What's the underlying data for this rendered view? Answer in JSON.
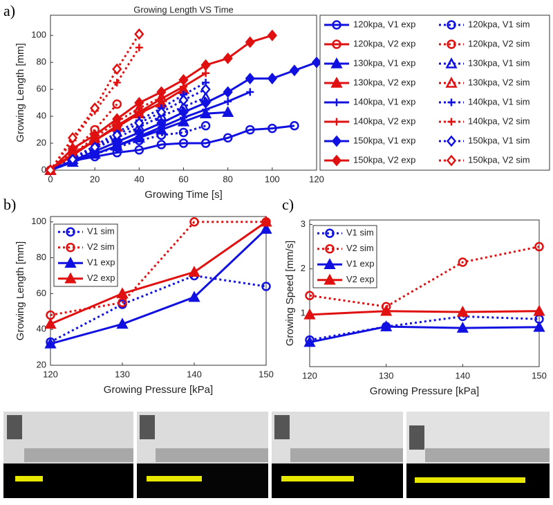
{
  "chart_data": [
    {
      "type": "line",
      "panel_label": "a)",
      "title": "Growing Length VS Time",
      "xlabel": "Growing Time [s]",
      "ylabel": "Growing Length [mm]",
      "xlim": [
        0,
        120
      ],
      "xticks": [
        0,
        20,
        40,
        60,
        80,
        100,
        120
      ],
      "ylim": [
        0,
        115
      ],
      "yticks": [
        0,
        20,
        40,
        60,
        80,
        100
      ],
      "grid": false,
      "legend": "outside right",
      "series": [
        {
          "name": "120kpa, V1 exp",
          "color": "#1010e0",
          "marker": "circle",
          "line_style": "solid",
          "x": [
            0,
            10,
            20,
            30,
            40,
            50,
            60,
            70,
            80,
            90,
            100,
            110
          ],
          "values": [
            0,
            7,
            10,
            13,
            15,
            19,
            20,
            20,
            24,
            30,
            31,
            33
          ]
        },
        {
          "name": "120kpa, V1 sim",
          "color": "#1010e0",
          "marker": "circle",
          "line_style": "dotted",
          "x": [
            0,
            10,
            20,
            30,
            40,
            50,
            60,
            70
          ],
          "values": [
            0,
            6,
            12,
            17,
            22,
            26,
            28,
            33
          ]
        },
        {
          "name": "120kpa, V2 exp",
          "color": "#e01010",
          "marker": "circle",
          "line_style": "solid",
          "x": [
            0,
            10,
            20,
            30,
            40
          ],
          "values": [
            0,
            12,
            22,
            33,
            43
          ]
        },
        {
          "name": "120kpa, V2 sim",
          "color": "#e01010",
          "marker": "circle",
          "line_style": "dotted",
          "x": [
            0,
            10,
            20,
            30
          ],
          "values": [
            0,
            14,
            30,
            49
          ]
        },
        {
          "name": "130kpa, V1 exp",
          "color": "#1010e0",
          "marker": "triangle",
          "line_style": "solid",
          "x": [
            0,
            10,
            20,
            30,
            40,
            50,
            60,
            70,
            80
          ],
          "values": [
            0,
            6,
            12,
            18,
            24,
            30,
            36,
            42,
            43
          ]
        },
        {
          "name": "130kpa, V1 sim",
          "color": "#1010e0",
          "marker": "triangle",
          "line_style": "dotted",
          "x": [
            0,
            10,
            20,
            30,
            40,
            50,
            60,
            70
          ],
          "values": [
            0,
            8,
            16,
            24,
            32,
            40,
            47,
            54
          ]
        },
        {
          "name": "130kpa, V2 exp",
          "color": "#e01010",
          "marker": "triangle",
          "line_style": "solid",
          "x": [
            0,
            10,
            20,
            30,
            40,
            50,
            60
          ],
          "values": [
            0,
            12,
            22,
            32,
            42,
            50,
            60
          ]
        },
        {
          "name": "130kpa, V2 sim",
          "color": "#e01010",
          "marker": "triangle",
          "line_style": "dotted",
          "x": [
            0,
            10,
            20,
            30,
            40,
            50
          ],
          "values": [
            0,
            12,
            24,
            36,
            46,
            54
          ]
        },
        {
          "name": "140kpa, V1 exp",
          "color": "#1010e0",
          "marker": "plus",
          "line_style": "solid",
          "x": [
            0,
            10,
            20,
            30,
            40,
            50,
            60,
            70,
            80,
            90
          ],
          "values": [
            0,
            6,
            12,
            18,
            25,
            32,
            39,
            45,
            51,
            58
          ]
        },
        {
          "name": "140kpa, V1 sim",
          "color": "#1010e0",
          "marker": "plus",
          "line_style": "dotted",
          "x": [
            0,
            10,
            20,
            30,
            40,
            50,
            60,
            70
          ],
          "values": [
            0,
            9,
            18,
            28,
            37,
            46,
            56,
            65
          ]
        },
        {
          "name": "140kpa, V2 exp",
          "color": "#e01010",
          "marker": "plus",
          "line_style": "solid",
          "x": [
            0,
            10,
            20,
            30,
            40,
            50,
            60,
            70
          ],
          "values": [
            0,
            11,
            22,
            33,
            43,
            53,
            62,
            72
          ]
        },
        {
          "name": "140kpa, V2 sim",
          "color": "#e01010",
          "marker": "plus",
          "line_style": "dotted",
          "x": [
            0,
            10,
            20,
            30,
            40
          ],
          "values": [
            0,
            22,
            44,
            65,
            91
          ]
        },
        {
          "name": "150kpa, V1 exp",
          "color": "#1010e0",
          "marker": "diamond",
          "line_style": "solid",
          "x": [
            0,
            10,
            20,
            30,
            40,
            50,
            60,
            70,
            80,
            90,
            100,
            110,
            120
          ],
          "values": [
            0,
            7,
            14,
            21,
            28,
            35,
            43,
            50,
            58,
            68,
            68,
            74,
            80
          ]
        },
        {
          "name": "150kpa, V1 sim",
          "color": "#1010e0",
          "marker": "diamond",
          "line_style": "dotted",
          "x": [
            0,
            10,
            20,
            30,
            40,
            50,
            60,
            70
          ],
          "values": [
            0,
            8,
            17,
            26,
            35,
            43,
            52,
            60
          ]
        },
        {
          "name": "150kpa, V2 exp",
          "color": "#e01010",
          "marker": "diamond",
          "line_style": "solid",
          "x": [
            0,
            10,
            20,
            30,
            40,
            50,
            60,
            70,
            80,
            90,
            100
          ],
          "values": [
            0,
            16,
            26,
            38,
            50,
            58,
            67,
            78,
            83,
            95,
            100
          ]
        },
        {
          "name": "150kpa, V2 sim",
          "color": "#e01010",
          "marker": "diamond",
          "line_style": "dotted",
          "x": [
            0,
            10,
            20,
            30,
            40
          ],
          "values": [
            0,
            24,
            46,
            75,
            101
          ]
        }
      ]
    },
    {
      "type": "line",
      "panel_label": "b)",
      "xlabel": "Growing Pressure [kPa]",
      "ylabel": "Growing Length [mm]",
      "xlim": [
        120,
        150
      ],
      "xticks": [
        120,
        130,
        140,
        150
      ],
      "ylim": [
        20,
        103
      ],
      "yticks": [
        20,
        40,
        60,
        80,
        100
      ],
      "grid": false,
      "legend": "upper left",
      "x": [
        120,
        130,
        140,
        150
      ],
      "series": [
        {
          "name": "V1 sim",
          "color": "#1010e0",
          "marker": "circle",
          "line_style": "dotted",
          "values": [
            33,
            54,
            70,
            64
          ]
        },
        {
          "name": "V2 sim",
          "color": "#e01010",
          "marker": "circle",
          "line_style": "dotted",
          "values": [
            48,
            55,
            100,
            100
          ]
        },
        {
          "name": "V1 exp",
          "color": "#1010e0",
          "marker": "triangle",
          "line_style": "solid",
          "values": [
            32,
            43,
            58,
            96
          ]
        },
        {
          "name": "V2 exp",
          "color": "#e01010",
          "marker": "triangle",
          "line_style": "solid",
          "values": [
            43,
            60,
            72,
            100
          ]
        }
      ]
    },
    {
      "type": "line",
      "panel_label": "c)",
      "xlabel": "Growing Pressure [kPa]",
      "ylabel": "Growing Speed [mm/s]",
      "xlim": [
        120,
        150
      ],
      "xticks": [
        120,
        130,
        140,
        150
      ],
      "ylim": [
        -0.2,
        3.1
      ],
      "yticks": [
        1,
        2,
        3
      ],
      "grid": false,
      "legend": "upper left",
      "x": [
        120,
        130,
        140,
        150
      ],
      "series": [
        {
          "name": "V1 sim",
          "color": "#1010e0",
          "marker": "circle",
          "line_style": "dotted",
          "values": [
            0.4,
            0.7,
            0.93,
            0.87
          ]
        },
        {
          "name": "V2 sim",
          "color": "#e01010",
          "marker": "circle",
          "line_style": "dotted",
          "values": [
            1.4,
            1.15,
            2.15,
            2.5
          ]
        },
        {
          "name": "V1 exp",
          "color": "#1010e0",
          "marker": "triangle",
          "line_style": "solid",
          "values": [
            0.35,
            0.7,
            0.67,
            0.69
          ]
        },
        {
          "name": "V2 exp",
          "color": "#e01010",
          "marker": "triangle",
          "line_style": "solid",
          "values": [
            0.97,
            1.05,
            1.03,
            1.05
          ]
        }
      ]
    }
  ]
}
